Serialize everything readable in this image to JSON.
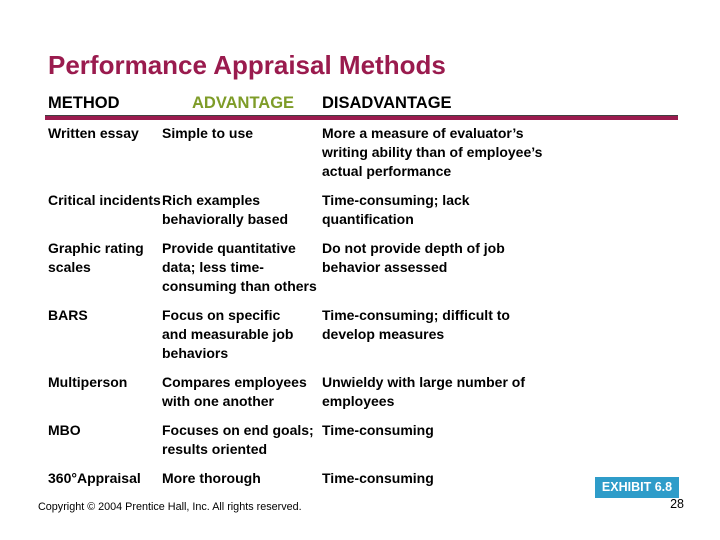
{
  "title": "Performance Appraisal Methods",
  "table": {
    "headers": [
      "METHOD",
      "ADVANTAGE",
      "DISADVANTAGE"
    ],
    "rows": [
      {
        "method": "Written essay",
        "advantage": "Simple to use",
        "disadvantage": "More a measure of evaluator’s\nwriting ability than of employee’s\nactual performance"
      },
      {
        "method": "Critical incidents",
        "advantage": "Rich examples\nbehaviorally based",
        "disadvantage": "Time-consuming; lack\nquantification"
      },
      {
        "method": "Graphic rating\nscales",
        "advantage": "Provide quantitative\ndata; less time-\nconsuming than others",
        "disadvantage": "Do not provide depth of job\nbehavior assessed"
      },
      {
        "method": "BARS",
        "advantage": "Focus on specific\nand measurable job\nbehaviors",
        "disadvantage": "Time-consuming; difficult to\ndevelop measures"
      },
      {
        "method": "Multiperson",
        "advantage": "Compares employees\nwith one another",
        "disadvantage": "Unwieldy with large number of\nemployees"
      },
      {
        "method": "MBO",
        "advantage": "Focuses on end goals;\nresults oriented",
        "disadvantage": "Time-consuming"
      },
      {
        "method": "360°Appraisal",
        "advantage": "More thorough",
        "disadvantage": "Time-consuming"
      }
    ]
  },
  "footer": {
    "exhibit_label": "EXHIBIT 6.8",
    "copyright": "Copyright © 2004 Prentice Hall, Inc. All rights reserved.",
    "page_number": "28"
  },
  "colors": {
    "title_maroon": "#9A1B4E",
    "rule_maroon": "#9A1B4E",
    "advantage_green": "#7E9C28",
    "exhibit_blue": "#2E9CC9",
    "body_text": "#000000",
    "background": "#FFFFFF"
  }
}
